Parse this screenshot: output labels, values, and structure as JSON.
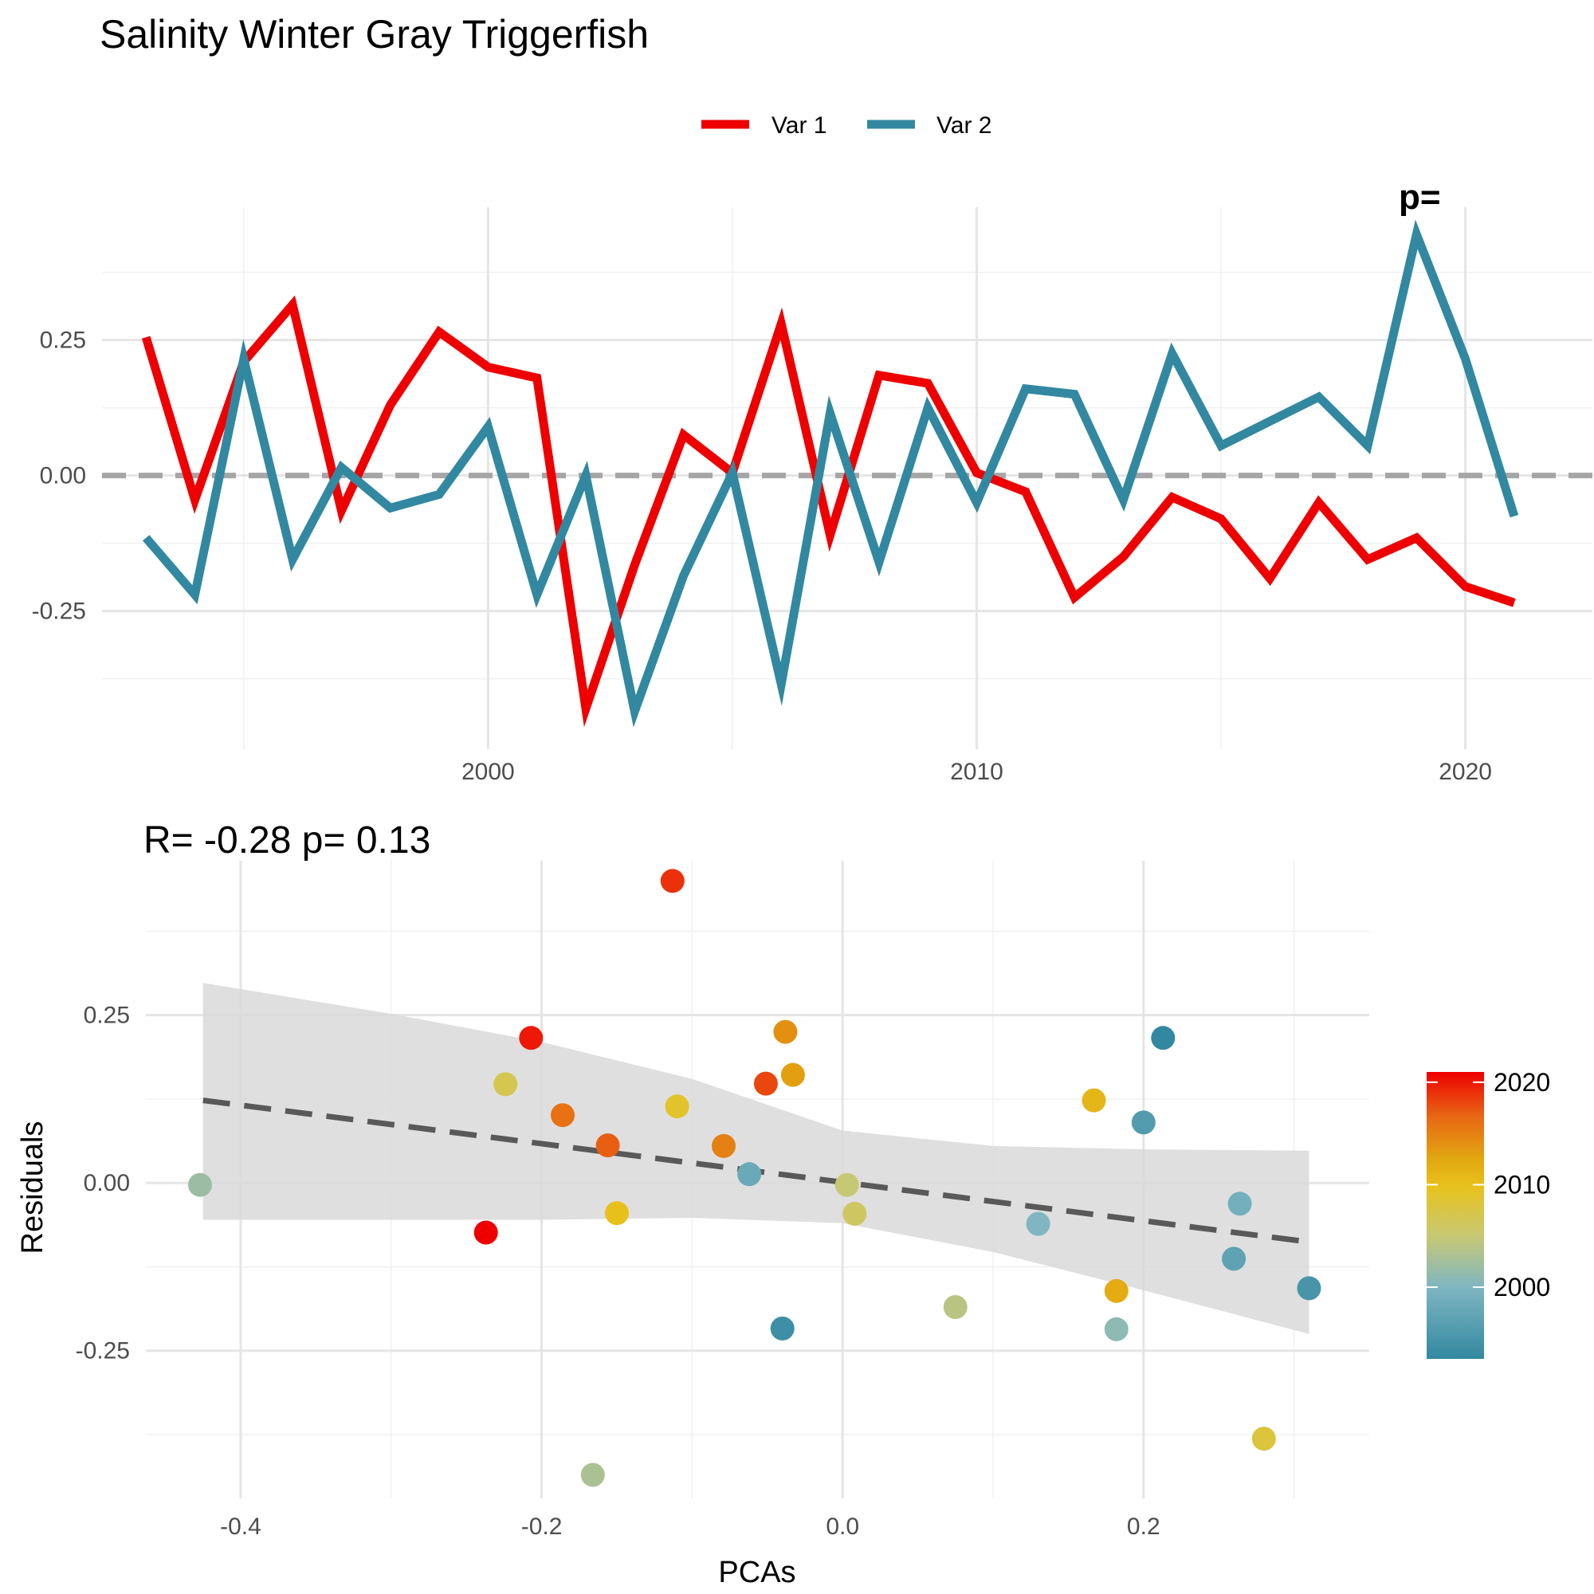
{
  "colors": {
    "var1": "#EE0000",
    "var2": "#3288A0",
    "zero_line": "#A6A6A6",
    "grid_major": "#E5E5E5",
    "grid_minor": "#F0F0F0",
    "trend": "#595959",
    "ribbon": "#D9D9D9",
    "gradient": [
      "#3288A0",
      "#7FB6C2",
      "#C8C873",
      "#E8C21C",
      "#E1A610",
      "#E86414",
      "#EE0000"
    ]
  },
  "chart_data": [
    {
      "type": "line",
      "title": "Salinity Winter Gray Triggerfish",
      "legend_position": "top",
      "grid": true,
      "xlim": [
        1992.1,
        2022.6
      ],
      "ylim": [
        -0.505,
        0.495
      ],
      "x_ticks": [
        "2000",
        "2010",
        "2020"
      ],
      "y_ticks": [
        "0.25",
        "0.00",
        "-0.25"
      ],
      "zero_line": 0,
      "corner_annotation": "p=",
      "x": [
        1993,
        1994,
        1995,
        1996,
        1997,
        1998,
        1999,
        2000,
        2001,
        2002,
        2003,
        2004,
        2005,
        2006,
        2007,
        2008,
        2009,
        2010,
        2011,
        2012,
        2013,
        2014,
        2015,
        2016,
        2017,
        2018,
        2019,
        2020,
        2021
      ],
      "series": [
        {
          "name": "Var 1",
          "values": [
            0.255,
            -0.045,
            0.21,
            0.315,
            -0.065,
            0.13,
            0.265,
            0.2,
            0.18,
            -0.43,
            -0.165,
            0.075,
            0.005,
            0.28,
            -0.11,
            0.185,
            0.17,
            0.005,
            -0.03,
            -0.225,
            -0.15,
            -0.04,
            -0.08,
            -0.19,
            -0.05,
            -0.155,
            -0.115,
            -0.205,
            -0.235
          ]
        },
        {
          "name": "Var 2",
          "values": [
            -0.115,
            -0.22,
            0.215,
            -0.155,
            0.015,
            -0.06,
            -0.035,
            0.09,
            -0.22,
            0.0,
            -0.435,
            -0.185,
            0.005,
            -0.385,
            0.115,
            -0.16,
            0.125,
            -0.05,
            0.16,
            0.15,
            -0.045,
            0.225,
            0.055,
            0.1,
            0.145,
            0.055,
            0.445,
            0.215,
            -0.075
          ]
        }
      ]
    },
    {
      "type": "scatter",
      "title": "R= -0.28  p= 0.13",
      "xlabel": "PCAs",
      "ylabel": "Residuals",
      "grid": true,
      "xlim": [
        -0.463,
        0.35
      ],
      "ylim": [
        -0.47,
        0.48
      ],
      "x_ticks": [
        "-0.4",
        "-0.2",
        "0.0",
        "0.2"
      ],
      "y_ticks": [
        "0.25",
        "0.00",
        "-0.25"
      ],
      "color_scale": {
        "name": "year",
        "range": [
          1993,
          2021
        ],
        "ticks": [
          "2020",
          "2010",
          "2000"
        ]
      },
      "trend_line": {
        "x": [
          -0.425,
          0.31
        ],
        "y": [
          0.123,
          -0.088
        ]
      },
      "confidence_band": {
        "x": [
          -0.425,
          -0.3,
          -0.2,
          -0.1,
          0.0,
          0.1,
          0.2,
          0.31
        ],
        "upper": [
          0.298,
          0.252,
          0.21,
          0.155,
          0.078,
          0.055,
          0.05,
          0.048
        ],
        "lower": [
          -0.055,
          -0.055,
          -0.055,
          -0.052,
          -0.06,
          -0.103,
          -0.16,
          -0.225
        ]
      },
      "points": [
        {
          "x": 0.213,
          "y": 0.216,
          "year": 1993
        },
        {
          "x": -0.04,
          "y": -0.217,
          "year": 1994
        },
        {
          "x": 0.31,
          "y": -0.157,
          "year": 1995
        },
        {
          "x": 0.2,
          "y": 0.09,
          "year": 1996
        },
        {
          "x": 0.26,
          "y": -0.113,
          "year": 1997
        },
        {
          "x": -0.062,
          "y": 0.013,
          "year": 1998
        },
        {
          "x": 0.264,
          "y": -0.031,
          "year": 1999
        },
        {
          "x": 0.13,
          "y": -0.061,
          "year": 2000
        },
        {
          "x": 0.182,
          "y": -0.218,
          "year": 2001
        },
        {
          "x": -0.427,
          "y": -0.003,
          "year": 2002
        },
        {
          "x": -0.166,
          "y": -0.435,
          "year": 2003
        },
        {
          "x": 0.075,
          "y": -0.185,
          "year": 2004
        },
        {
          "x": 0.003,
          "y": -0.003,
          "year": 2005
        },
        {
          "x": 0.008,
          "y": -0.046,
          "year": 2006
        },
        {
          "x": -0.224,
          "y": 0.147,
          "year": 2007
        },
        {
          "x": 0.28,
          "y": -0.381,
          "year": 2008
        },
        {
          "x": -0.11,
          "y": 0.114,
          "year": 2009
        },
        {
          "x": -0.15,
          "y": -0.045,
          "year": 2010
        },
        {
          "x": 0.167,
          "y": 0.123,
          "year": 2011
        },
        {
          "x": 0.182,
          "y": -0.161,
          "year": 2012
        },
        {
          "x": -0.033,
          "y": 0.161,
          "year": 2013
        },
        {
          "x": -0.038,
          "y": 0.225,
          "year": 2014
        },
        {
          "x": -0.079,
          "y": 0.055,
          "year": 2015
        },
        {
          "x": -0.186,
          "y": 0.101,
          "year": 2016
        },
        {
          "x": -0.156,
          "y": 0.056,
          "year": 2017
        },
        {
          "x": -0.051,
          "y": 0.148,
          "year": 2018
        },
        {
          "x": -0.113,
          "y": 0.45,
          "year": 2019
        },
        {
          "x": -0.207,
          "y": 0.216,
          "year": 2020
        },
        {
          "x": -0.237,
          "y": -0.074,
          "year": 2021
        }
      ]
    }
  ],
  "legend": {
    "items": [
      "Var 1",
      "Var 2"
    ]
  }
}
